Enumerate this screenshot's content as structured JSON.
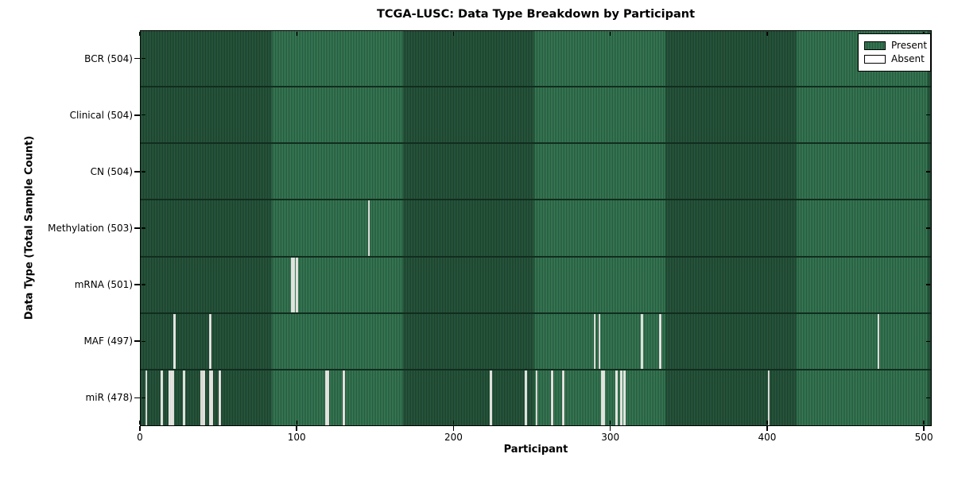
{
  "title": "TCGA-LUSC: Data Type Breakdown by Participant",
  "colors": {
    "present_green": "#3a8158",
    "present_green_dark": "#235239",
    "absent_white": "#e9e9e5",
    "axis_black": "#000000"
  },
  "legend": {
    "entries": [
      {
        "label": "Present",
        "color": "#3a8158"
      },
      {
        "label": "Absent",
        "color": "#ffffff"
      }
    ]
  },
  "chart_data": {
    "type": "heatmap",
    "title": "TCGA-LUSC: Data Type Breakdown by Participant",
    "xlabel": "Participant",
    "ylabel": "Data Type (Total Sample Count)",
    "xlim": [
      0,
      505
    ],
    "x_ticks": [
      0,
      100,
      200,
      300,
      400,
      500
    ],
    "n_participants": 504,
    "legend_position": "upper right",
    "grid": false,
    "rows": [
      {
        "label": "BCR (504)",
        "total": 504,
        "absent_participants": []
      },
      {
        "label": "Clinical (504)",
        "total": 504,
        "absent_participants": []
      },
      {
        "label": "CN (504)",
        "total": 504,
        "absent_participants": []
      },
      {
        "label": "Methylation (503)",
        "total": 503,
        "absent_participants": [
          145
        ]
      },
      {
        "label": "mRNA (501)",
        "total": 501,
        "absent_participants": [
          96,
          97,
          99
        ]
      },
      {
        "label": "MAF (497)",
        "total": 497,
        "absent_participants": [
          21,
          44,
          289,
          292,
          319,
          331,
          470
        ]
      },
      {
        "label": "miR (478)",
        "total": 478,
        "absent_participants": [
          3,
          13,
          18,
          19,
          20,
          27,
          38,
          39,
          40,
          44,
          45,
          50,
          118,
          119,
          129,
          223,
          245,
          252,
          262,
          269,
          294,
          295,
          303,
          306,
          308,
          400
        ]
      }
    ]
  }
}
